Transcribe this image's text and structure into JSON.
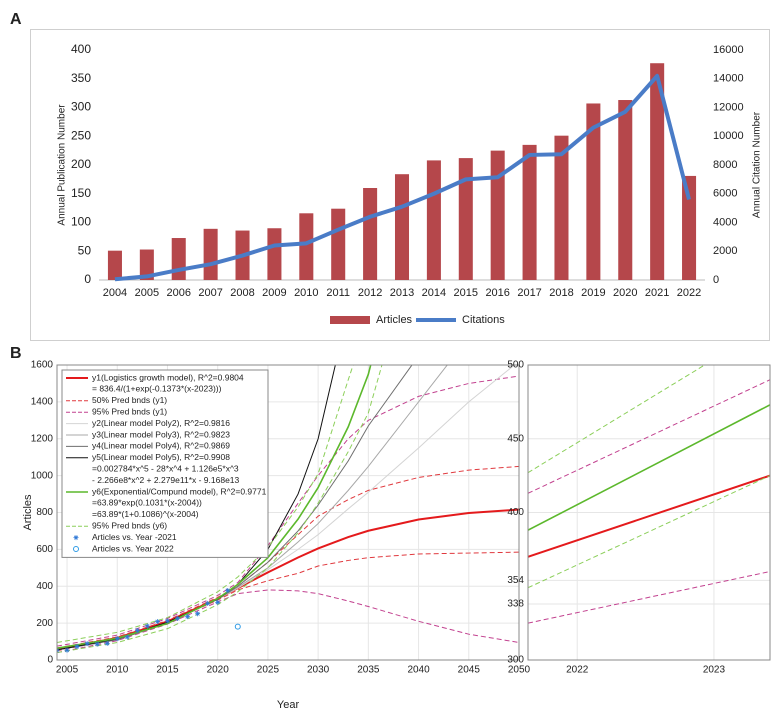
{
  "panels": [
    "A",
    "B"
  ],
  "chart_data": [
    {
      "type": "bar",
      "categories": [
        "2004",
        "2005",
        "2006",
        "2007",
        "2008",
        "2009",
        "2010",
        "2011",
        "2012",
        "2013",
        "2014",
        "2015",
        "2016",
        "2017",
        "2018",
        "2019",
        "2020",
        "2021",
        "2022"
      ],
      "series": [
        {
          "name": "Articles",
          "color": "#b5474b",
          "values": [
            51,
            53,
            73,
            89,
            86,
            90,
            116,
            124,
            160,
            184,
            208,
            212,
            225,
            235,
            251,
            307,
            313,
            377,
            181
          ]
        },
        {
          "name": "Citations",
          "color": "#4a7cc7",
          "type": "line",
          "axis": "y2",
          "values": [
            50,
            250,
            700,
            1100,
            1700,
            2400,
            2550,
            3500,
            4400,
            5100,
            6000,
            7000,
            7150,
            8700,
            8750,
            10600,
            11700,
            14200,
            5600
          ]
        }
      ],
      "ylabel": "Annual Publication Number",
      "y2label": "Annual Citation Number",
      "ylim": [
        0,
        400
      ],
      "yticks": [
        0,
        50,
        100,
        150,
        200,
        250,
        300,
        350,
        400
      ],
      "y2lim": [
        0,
        16000
      ],
      "y2ticks": [
        0,
        2000,
        4000,
        6000,
        8000,
        10000,
        12000,
        14000,
        16000
      ],
      "legend": "bottom",
      "grid": false
    },
    {
      "type": "line",
      "x": [
        2004,
        2010,
        2015,
        2020,
        2022,
        2025,
        2028,
        2030,
        2033,
        2035,
        2040,
        2045,
        2050
      ],
      "series": [
        {
          "name": "y1(Logistics growth model), R^2=0.9804",
          "formula": [
            "= 836.4/(1+exp(-0.1373*(x-2023)))"
          ],
          "color": "#e41a1c",
          "width": 2,
          "values": [
            57,
            120,
            209,
            333,
            390,
            475,
            556,
            605,
            667,
            701,
            762,
            797,
            816
          ]
        },
        {
          "name": "50% Pred bnds (y1)",
          "color": "#e0393e",
          "style": "dashed",
          "values": [
            65,
            125,
            215,
            340,
            400,
            530,
            680,
            780,
            870,
            920,
            990,
            1030,
            1050
          ]
        },
        {
          "color": "#e0393e",
          "style": "dashed",
          "values": [
            50,
            115,
            205,
            325,
            380,
            430,
            470,
            510,
            540,
            555,
            575,
            580,
            585
          ]
        },
        {
          "name": "95% Pred bnds (y1)",
          "color": "#c2418f",
          "style": "dashed",
          "values": [
            75,
            135,
            225,
            350,
            420,
            620,
            850,
            1000,
            1200,
            1300,
            1430,
            1500,
            1540
          ]
        },
        {
          "color": "#c2418f",
          "style": "dashed",
          "values": [
            40,
            105,
            195,
            315,
            360,
            380,
            375,
            360,
            320,
            290,
            210,
            140,
            95
          ]
        },
        {
          "name": "y2(Linear model Poly2), R^2=0.9816",
          "color": "#d4d4d4",
          "values": [
            55,
            110,
            200,
            330,
            390,
            490,
            600,
            680,
            820,
            910,
            1150,
            1400,
            1620
          ]
        },
        {
          "name": "y3(Linear model Poly3), R^2=0.9823",
          "color": "#a8a8a8",
          "values": [
            55,
            110,
            200,
            330,
            395,
            500,
            640,
            740,
            920,
            1050,
            1400,
            1750,
            null
          ]
        },
        {
          "name": "y4(Linear model Poly4), R^2=0.9869",
          "color": "#6e6e6e",
          "values": [
            55,
            110,
            200,
            330,
            400,
            530,
            700,
            840,
            1080,
            1270,
            1650,
            null,
            null
          ]
        },
        {
          "name": "y5(Linear model Poly5), R^2=0.9908",
          "formula": [
            "=0.002784*x^5 - 28*x^4 + 1.126e5*x^3",
            "- 2.266e8*x^2 + 2.279e11*x - 9.168e13"
          ],
          "color": "#111111",
          "values": [
            55,
            115,
            205,
            330,
            410,
            600,
            900,
            1200,
            1900,
            null,
            null,
            null,
            null
          ]
        },
        {
          "name": "y6(Exponential/Compund model), R^2=0.9771",
          "formula": [
            "=63.89*exp(0.1031*(x-2004))",
            "=63.89*(1+0.1086)^(x-2004)"
          ],
          "color": "#5cb82c",
          "width": 1.6,
          "values": [
            64,
            118,
            198,
            333,
            410,
            555,
            764,
            935,
            1265,
            1550,
            2620,
            null,
            null
          ]
        },
        {
          "name": "95% Pred bnds (y6)",
          "color": "#8ccf5a",
          "style": "dashed",
          "values": [
            95,
            150,
            230,
            370,
            450,
            610,
            830,
            1010,
            1520,
            1850,
            null,
            null,
            null
          ]
        },
        {
          "color": "#8ccf5a",
          "style": "dashed",
          "values": [
            40,
            95,
            170,
            300,
            370,
            500,
            690,
            850,
            1130,
            1340,
            2300,
            null,
            null
          ]
        },
        {
          "name": "Articles vs. Year -2021",
          "type": "scatter",
          "marker": "asterisk",
          "color": "#2f78d6",
          "x": [
            2004,
            2005,
            2006,
            2007,
            2008,
            2009,
            2010,
            2011,
            2012,
            2013,
            2014,
            2015,
            2016,
            2017,
            2018,
            2019,
            2020,
            2021
          ],
          "values": [
            51,
            53,
            73,
            89,
            86,
            90,
            116,
            124,
            160,
            184,
            208,
            212,
            225,
            235,
            251,
            307,
            313,
            377
          ]
        },
        {
          "name": "Articles vs. Year 2022",
          "type": "scatter",
          "marker": "circle",
          "color": "#2f9be6",
          "x": [
            2022
          ],
          "values": [
            181
          ]
        }
      ],
      "xlabel": "Year",
      "ylabel": "Articles",
      "xlim": [
        2004,
        2050
      ],
      "xticks": [
        2005,
        2010,
        2015,
        2020,
        2025,
        2030,
        2035,
        2040,
        2045,
        2050
      ],
      "ylim": [
        0,
        1600
      ],
      "yticks": [
        0,
        200,
        400,
        600,
        800,
        1000,
        1200,
        1400,
        1600
      ],
      "legend": "top-left",
      "grid": true
    },
    {
      "type": "line",
      "x": [
        2021.64,
        2023.41
      ],
      "series": [
        {
          "color": "#8ccf5a",
          "style": "dashed",
          "values": [
            427,
            527
          ]
        },
        {
          "color": "#c2418f",
          "style": "dashed",
          "values": [
            413,
            490
          ]
        },
        {
          "color": "#5cb82c",
          "width": 1.6,
          "values": [
            388,
            473
          ]
        },
        {
          "color": "#e41a1c",
          "width": 2,
          "values": [
            370,
            425
          ]
        },
        {
          "color": "#8ccf5a",
          "style": "dashed",
          "values": [
            349,
            425
          ]
        },
        {
          "color": "#c2418f",
          "style": "dashed",
          "values": [
            325,
            360
          ]
        }
      ],
      "xlim": [
        2021.64,
        2023.41
      ],
      "xticks": [
        2022,
        2023
      ],
      "ylim": [
        300,
        500
      ],
      "yticks": [
        300,
        338,
        354,
        400,
        450,
        500
      ],
      "grid": true
    }
  ]
}
